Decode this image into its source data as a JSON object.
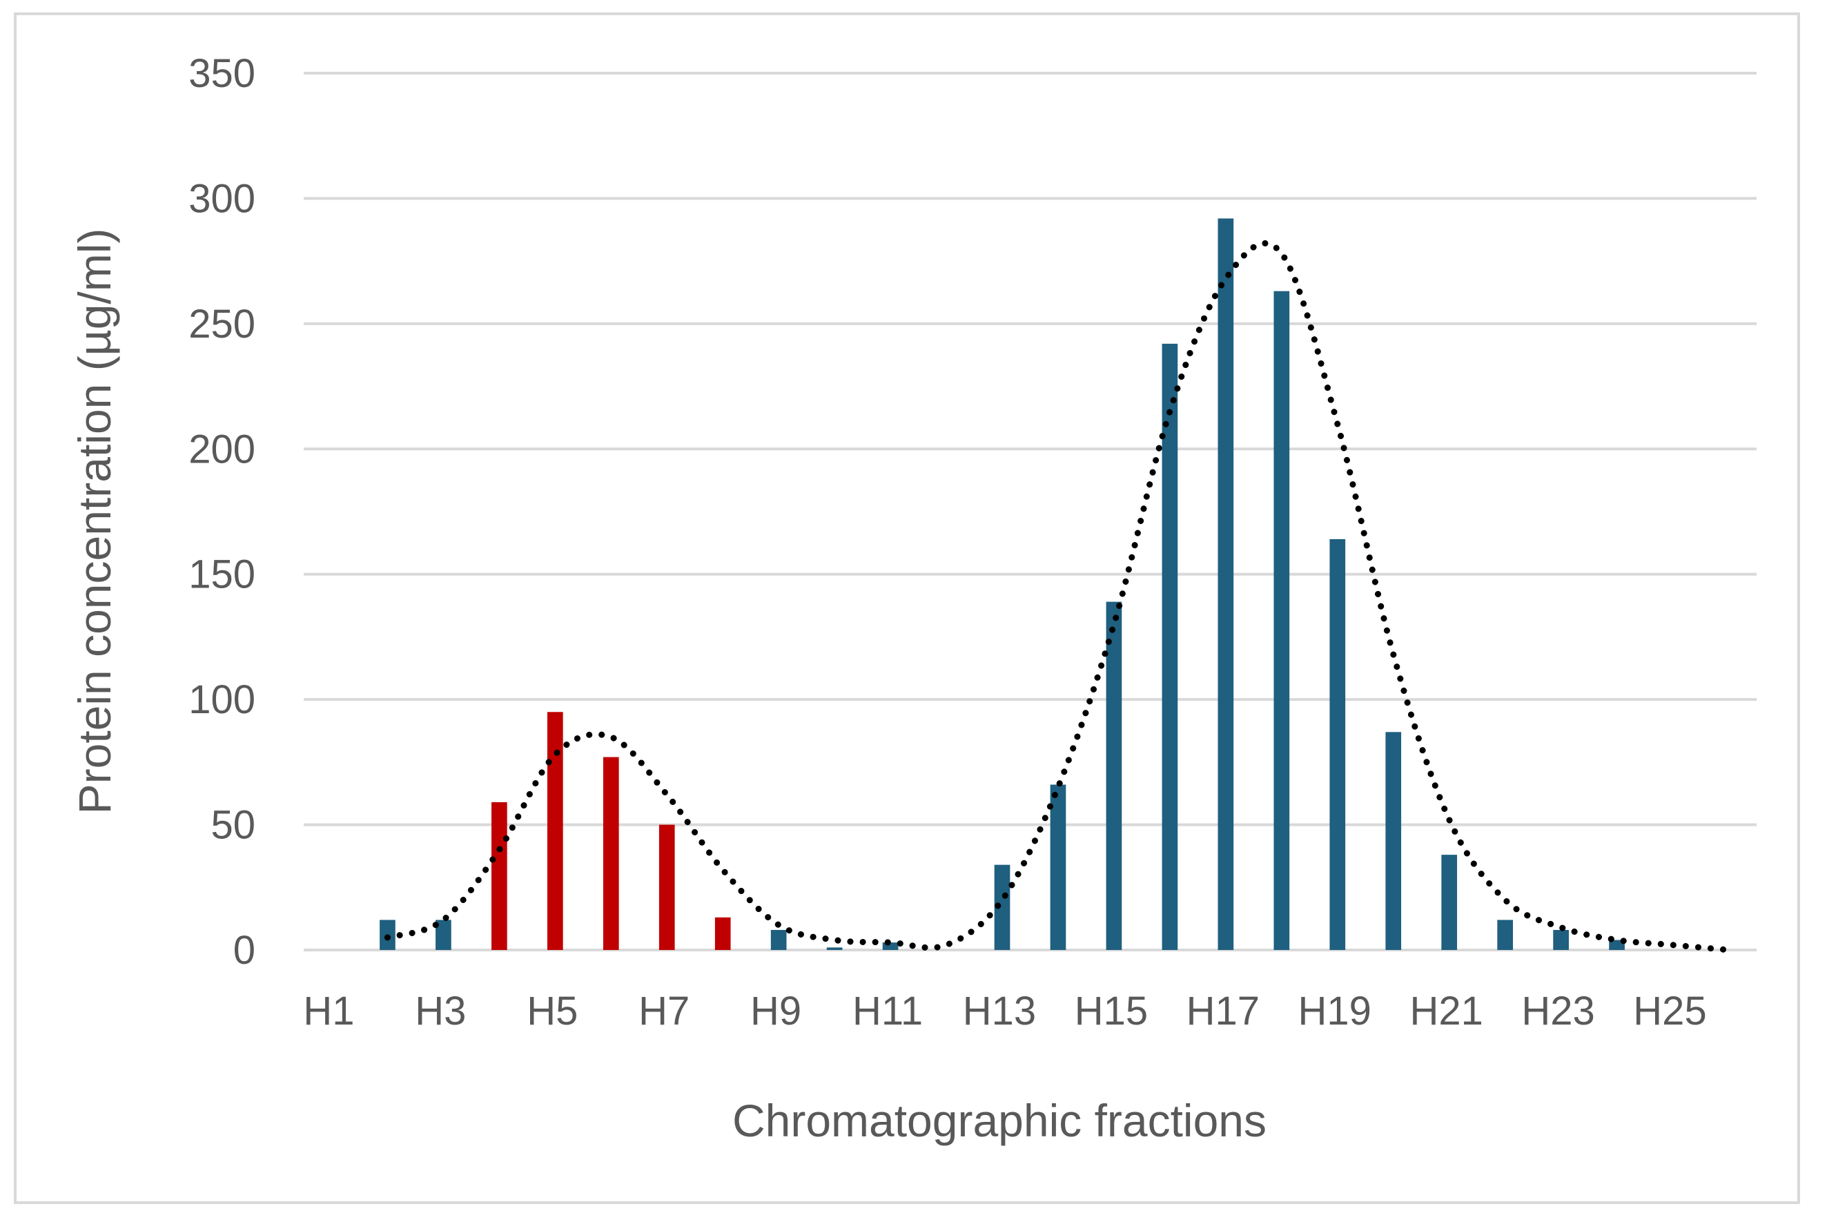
{
  "chart_data": {
    "type": "bar",
    "title": "",
    "xlabel": "Chromatographic fractions",
    "ylabel": "Protein concentration (µg/ml)",
    "ylim": [
      0,
      350
    ],
    "yticks": [
      "0",
      "50",
      "100",
      "150",
      "200",
      "250",
      "300",
      "350"
    ],
    "grid": true,
    "legend": "none",
    "categories": [
      "H1",
      "H2",
      "H3",
      "H4",
      "H5",
      "H6",
      "H7",
      "H8",
      "H9",
      "H10",
      "H11",
      "H12",
      "H13",
      "H14",
      "H15",
      "H16",
      "H17",
      "H18",
      "H19",
      "H20",
      "H21",
      "H22",
      "H23",
      "H24",
      "H25",
      "H26"
    ],
    "xtick_labels_shown": [
      "H1",
      "H3",
      "H5",
      "H7",
      "H9",
      "H11",
      "H13",
      "H15",
      "H17",
      "H19",
      "H21",
      "H23",
      "H25"
    ],
    "values": [
      0,
      12,
      12,
      59,
      95,
      77,
      50,
      13,
      8,
      1,
      3,
      0,
      34,
      66,
      139,
      242,
      292,
      263,
      164,
      87,
      38,
      12,
      8,
      4,
      0,
      0
    ],
    "bar_colors": [
      "#1f5f7f",
      "#1f5f7f",
      "#1f5f7f",
      "#c00000",
      "#c00000",
      "#c00000",
      "#c00000",
      "#c00000",
      "#1f5f7f",
      "#1f5f7f",
      "#1f5f7f",
      "#1f5f7f",
      "#1f5f7f",
      "#1f5f7f",
      "#1f5f7f",
      "#1f5f7f",
      "#1f5f7f",
      "#1f5f7f",
      "#1f5f7f",
      "#1f5f7f",
      "#1f5f7f",
      "#1f5f7f",
      "#1f5f7f",
      "#1f5f7f",
      "#1f5f7f",
      "#1f5f7f"
    ],
    "trendline": {
      "style": "dotted",
      "color": "#000000",
      "points": [
        [
          "H2",
          5
        ],
        [
          "H3",
          12
        ],
        [
          "H4",
          40
        ],
        [
          "H5",
          78
        ],
        [
          "H6",
          85
        ],
        [
          "H7",
          62
        ],
        [
          "H8",
          32
        ],
        [
          "H9",
          10
        ],
        [
          "H10",
          4
        ],
        [
          "H11",
          3
        ],
        [
          "H12",
          2
        ],
        [
          "H13",
          20
        ],
        [
          "H14",
          65
        ],
        [
          "H15",
          130
        ],
        [
          "H16",
          215
        ],
        [
          "H17",
          268
        ],
        [
          "H18",
          278
        ],
        [
          "H19",
          210
        ],
        [
          "H20",
          118
        ],
        [
          "H21",
          52
        ],
        [
          "H22",
          20
        ],
        [
          "H23",
          9
        ],
        [
          "H24",
          4
        ],
        [
          "H25",
          2
        ],
        [
          "H26",
          0
        ]
      ]
    }
  },
  "colors": {
    "gridline": "#d9d9d9",
    "text": "#595959",
    "blue_bar": "#1f5f7f",
    "red_bar": "#c00000"
  }
}
